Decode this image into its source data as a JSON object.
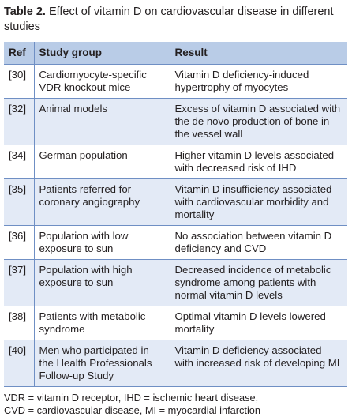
{
  "caption": {
    "label": "Table 2.",
    "text": " Effect of vitamin D on cardiovascular disease in different studies"
  },
  "table": {
    "headers": [
      "Ref",
      "Study group",
      "Result"
    ],
    "rows": [
      {
        "ref": "[30]",
        "group": "Cardiomyocyte-specific VDR knockout mice",
        "result": "Vitamin D deficiency-induced hypertrophy of myocytes"
      },
      {
        "ref": "[32]",
        "group": "Animal models",
        "result": "Excess of vitamin D associated with the de novo production of bone in the vessel wall"
      },
      {
        "ref": "[34]",
        "group": "German population",
        "result": "Higher vitamin D levels associated with decreased risk of IHD"
      },
      {
        "ref": "[35]",
        "group": "Patients referred for coronary angiography",
        "result": "Vitamin D insufficiency associated with cardiovascular morbidity and mortality"
      },
      {
        "ref": "[36]",
        "group": "Population with low exposure to sun",
        "result": "No association between vitamin D deficiency and CVD"
      },
      {
        "ref": "[37]",
        "group": "Population with high exposure to sun",
        "result": "Decreased incidence of metabolic syndrome among patients with normal vitamin D levels"
      },
      {
        "ref": "[38]",
        "group": "Patients with metabolic syndrome",
        "result": "Optimal vitamin D levels lowered mortality"
      },
      {
        "ref": "[40]",
        "group": "Men who participated in the Health Professionals Follow-up Study",
        "result": "Vitamin D deficiency associated with increased risk of developing MI"
      }
    ]
  },
  "footnote": {
    "line1": "VDR = vitamin D receptor, IHD = ischemic heart disease,",
    "line2": "CVD = cardiovascular disease, MI = myocardial infarction"
  },
  "colors": {
    "header_bg": "#b9cce7",
    "row_alt_bg": "#e3eaf6",
    "rule": "#6f8fc4"
  }
}
